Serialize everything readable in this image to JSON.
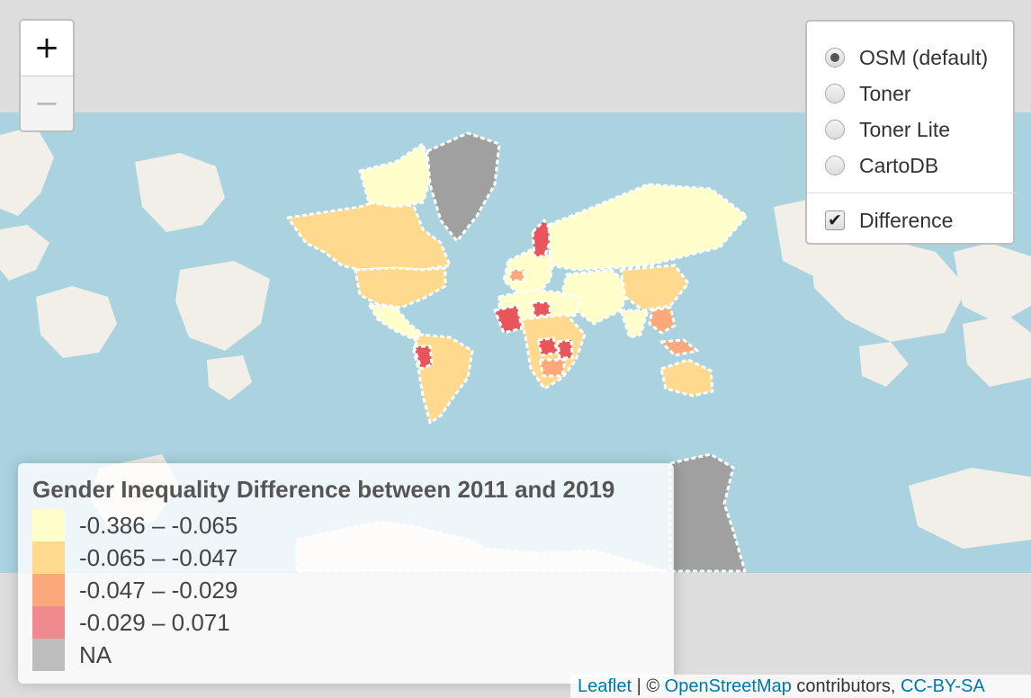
{
  "zoom": {
    "in_label": "+",
    "out_label": "−"
  },
  "layers": {
    "base": [
      {
        "label": "OSM (default)",
        "checked": true
      },
      {
        "label": "Toner",
        "checked": false
      },
      {
        "label": "Toner Lite",
        "checked": false
      },
      {
        "label": "CartoDB",
        "checked": false
      }
    ],
    "overlay": {
      "label": "Difference",
      "checked": true,
      "mark": "✔"
    }
  },
  "legend": {
    "title": "Gender Inequality Difference between 2011 and 2019",
    "items": [
      {
        "label": "-0.386 – -0.065",
        "color": "#FFFFCC"
      },
      {
        "label": "-0.065 – -0.047",
        "color": "#FED98E"
      },
      {
        "label": "-0.047 – -0.029",
        "color": "#FCA87A"
      },
      {
        "label": "-0.029 – 0.071",
        "color": "#E8555A"
      },
      {
        "label": "NA",
        "color": "#A0A0A0"
      }
    ]
  },
  "attribution": {
    "leaflet": "Leaflet",
    "sep": " | © ",
    "osm": "OpenStreetMap",
    "contributors": " contributors, ",
    "license": "CC-BY-SA"
  },
  "map_colors": {
    "ocean": "#AAD3DF",
    "land": "#F2EFE9",
    "outside": "#DDDDDD"
  }
}
